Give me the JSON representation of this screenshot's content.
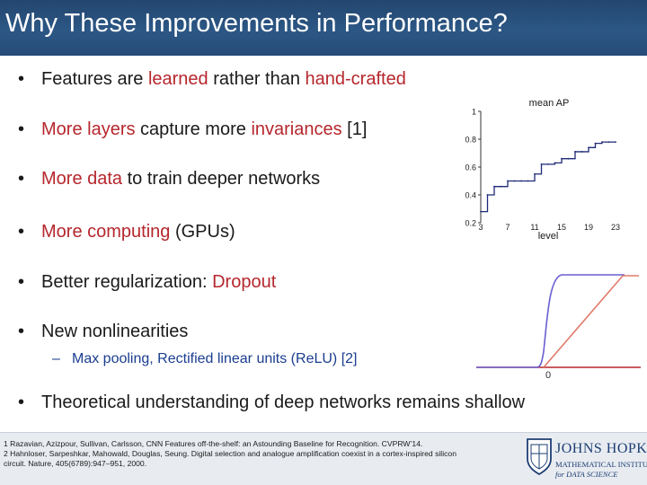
{
  "slide": {
    "title": "Why These Improvements in Performance?",
    "accent_color": "#b5272d",
    "title_bar_color": "#2c5785"
  },
  "bullets": [
    {
      "parts": [
        {
          "t": "Features are ",
          "hl": false
        },
        {
          "t": "learned",
          "hl": true
        },
        {
          "t": " rather than ",
          "hl": false
        },
        {
          "t": "hand-crafted",
          "hl": true
        }
      ]
    },
    {
      "parts": [
        {
          "t": "More layers",
          "hl": true
        },
        {
          "t": " capture more ",
          "hl": false
        },
        {
          "t": "invariances",
          "hl": true
        },
        {
          "t": " [1]",
          "hl": false
        }
      ]
    },
    {
      "parts": [
        {
          "t": "More data",
          "hl": true
        },
        {
          "t": " to train deeper networks",
          "hl": false
        }
      ]
    },
    {
      "parts": [
        {
          "t": "More computing",
          "hl": true
        },
        {
          "t": " (GPUs)",
          "hl": false
        }
      ]
    },
    {
      "parts": [
        {
          "t": "Better regularization: ",
          "hl": false
        },
        {
          "t": "Dropout",
          "hl": true
        }
      ]
    },
    {
      "parts": [
        {
          "t": "New nonlinearities",
          "hl": false
        }
      ]
    },
    {
      "parts": [
        {
          "t": "Theoretical understanding of deep networks remains shallow",
          "hl": false
        }
      ]
    }
  ],
  "sub_bullet": "Max pooling, Rectified linear units (ReLU) [2]",
  "bullet_symbol": "•",
  "sub_symbol": "–",
  "chart_data": {
    "type": "line",
    "title": "mean AP",
    "xlabel": "level",
    "ylabel": "",
    "x_ticks": [
      3,
      7,
      11,
      15,
      19,
      23
    ],
    "y_ticks": [
      0.2,
      0.4,
      0.6,
      0.8,
      1
    ],
    "y_tick_labels": [
      "0.2",
      "0.4",
      "0.6",
      "0.8",
      "1"
    ],
    "xlim": [
      3,
      23
    ],
    "ylim": [
      0.2,
      1
    ],
    "series": [
      {
        "x": [
          3,
          4,
          5,
          6,
          7,
          8,
          9,
          10,
          11,
          12,
          13,
          14,
          15,
          16,
          17,
          18,
          19,
          20,
          21,
          22,
          23
        ],
        "y": [
          0.28,
          0.4,
          0.46,
          0.46,
          0.5,
          0.5,
          0.5,
          0.5,
          0.55,
          0.62,
          0.62,
          0.63,
          0.66,
          0.66,
          0.71,
          0.71,
          0.74,
          0.77,
          0.78,
          0.78,
          0.78
        ]
      }
    ],
    "line_color": "#1f2a78",
    "grid": false
  },
  "relu_plot": {
    "zero_label": "0",
    "sigmoid_color": "#6a5fd0",
    "relu_color": "#e07a6a"
  },
  "references": [
    "1   Razavian, Azizpour, Sullivan, Carlsson, CNN Features off-the-shelf: an Astounding Baseline for Recognition. CVPRW’14.",
    "2  Hahnloser, Sarpeshkar, Mahowald, Douglas, Seung. Digital selection and analogue amplification coexist in a cortex-inspired silicon",
    "circuit. Nature, 405(6789):947–951, 2000."
  ],
  "logo": {
    "name": "JOHNS HOPKINS",
    "line1": "MATHEMATICAL INSTITUTE",
    "line2": "for DATA SCIENCE"
  }
}
